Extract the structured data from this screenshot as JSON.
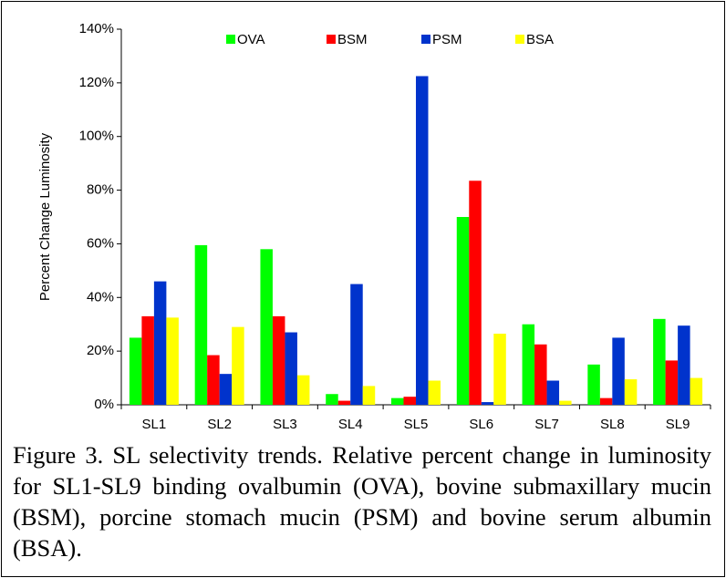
{
  "chart_data": {
    "type": "bar",
    "y_label": "Percent Change Luminosity",
    "categories": [
      "SL1",
      "SL2",
      "SL3",
      "SL4",
      "SL5",
      "SL6",
      "SL7",
      "SL8",
      "SL9"
    ],
    "series": [
      {
        "name": "OVA",
        "color": "#00ff00",
        "values": [
          25,
          59.5,
          58,
          4,
          2.5,
          70,
          30,
          15,
          32
        ]
      },
      {
        "name": "BSM",
        "color": "#ff0000",
        "values": [
          33,
          18.5,
          33,
          1.5,
          3,
          83.5,
          22.5,
          2.5,
          16.5
        ]
      },
      {
        "name": "PSM",
        "color": "#0033cc",
        "values": [
          46,
          11.5,
          27,
          45,
          122.5,
          1,
          9,
          25,
          29.5
        ]
      },
      {
        "name": "BSA",
        "color": "#ffff00",
        "values": [
          32.5,
          29,
          11,
          7,
          9,
          26.5,
          1.5,
          9.5,
          10
        ]
      }
    ],
    "ylim": [
      0,
      140
    ],
    "yticks": [
      {
        "value": 0,
        "label": "0%"
      },
      {
        "value": 20,
        "label": "20%"
      },
      {
        "value": 40,
        "label": "40%"
      },
      {
        "value": 60,
        "label": "60%"
      },
      {
        "value": 80,
        "label": "80%"
      },
      {
        "value": 100,
        "label": "100%"
      },
      {
        "value": 120,
        "label": "120%"
      },
      {
        "value": 140,
        "label": "140%"
      }
    ],
    "legend": "top",
    "grid": false
  },
  "caption": "Figure 3. SL selectivity trends. Relative percent change in luminosity for SL1-SL9 binding ovalbumin (OVA), bovine submaxillary mucin (BSM), porcine stomach mucin (PSM) and bovine serum albumin (BSA)."
}
